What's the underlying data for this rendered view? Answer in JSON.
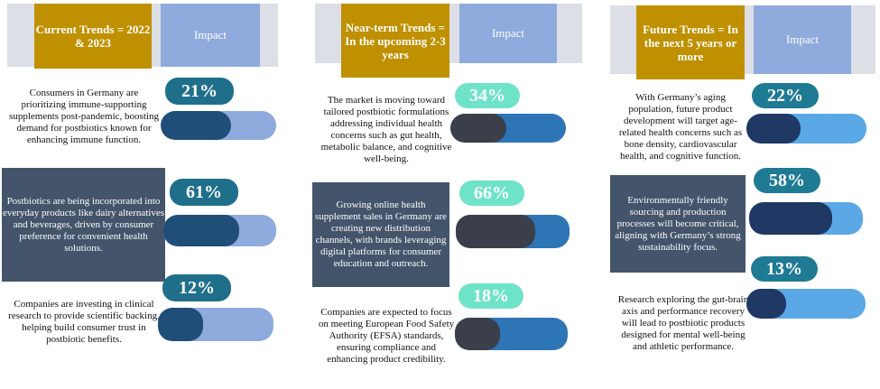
{
  "columns": [
    {
      "title": "Current Trends = 2022 & 2023",
      "impact_label": "Impact",
      "items": [
        {
          "text": "Consumers in Germany are prioritizing immune-supporting supplements post-pandemic, boosting demand for postbiotics known for enhancing immune function.",
          "percent": "21%",
          "value": 0.21
        },
        {
          "text": "Postbiotics are being incorporated into everyday products like dairy alternatives and beverages, driven by consumer preference for convenient health solutions.",
          "percent": "61%",
          "value": 0.61
        },
        {
          "text": "Companies are investing in clinical research to provide scientific backing, helping build consumer trust in postbiotic benefits.",
          "percent": "12%",
          "value": 0.12
        }
      ]
    },
    {
      "title": "Near-term Trends = In the upcoming 2-3 years",
      "impact_label": "Impact",
      "items": [
        {
          "text": "The market is moving toward tailored postbiotic formulations addressing individual health concerns such as gut health, metabolic balance, and cognitive well-being.",
          "percent": "34%",
          "value": 0.34
        },
        {
          "text": "Growing online health supplement sales in Germany are creating new distribution channels, with brands leveraging digital platforms for consumer education and outreach.",
          "percent": "66%",
          "value": 0.66
        },
        {
          "text": "Companies are expected to focus on meeting European Food Safety Authority (EFSA) standards, ensuring compliance and enhancing product credibility.",
          "percent": "18%",
          "value": 0.18
        }
      ]
    },
    {
      "title": "Future Trends = In the next 5 years or more",
      "impact_label": "Impact",
      "items": [
        {
          "text": "With Germany’s aging population, future product development will target age-related health concerns such as bone density, cardiovascular health, and cognitive function.",
          "percent": "22%",
          "value": 0.22
        },
        {
          "text": "Environmentally friendly sourcing and production processes will become critical, aligning with Germany’s strong sustainability focus.",
          "percent": "58%",
          "value": 0.58
        },
        {
          "text": "Research exploring the gut-brain axis and performance recovery will lead to postbiotic products designed for mental well-being and athletic performance.",
          "percent": "13%",
          "value": 0.13
        }
      ]
    }
  ],
  "colors": {
    "gold": "#bf9000",
    "impact_header": "#8faadc",
    "header_back": "#dcdfe6",
    "dark_box": "#44546a",
    "col1_pill": "#1f6f8b",
    "col1_fill": "#1f4e79",
    "col1_bar": "#8faadc",
    "col2_pill": "#6fe3c8",
    "col2_fill": "#3a3f4a",
    "col2_bar": "#2e75b6",
    "col3_pill": "#1f7a94",
    "col3_fill": "#1f3864",
    "col3_bar": "#5ba8e6"
  }
}
